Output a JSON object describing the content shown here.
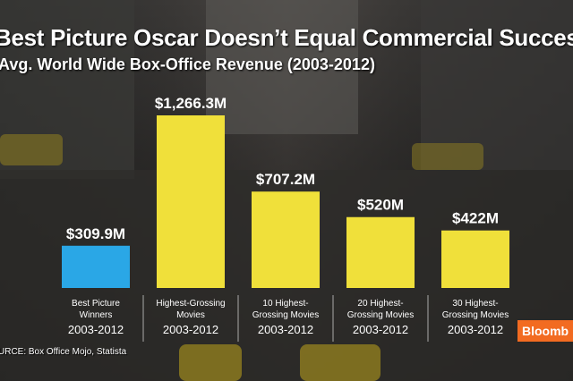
{
  "title": "Best Picture Oscar Doesn’t Equal Commercial Success",
  "subtitle": "Avg. World Wide Box-Office Revenue (2003-2012)",
  "source": "URCE:  Box Office Mojo, Statista",
  "brand": "Bloomb",
  "chart_data": {
    "type": "bar",
    "title": "Best Picture Oscar Doesn’t Equal Commercial Success",
    "subtitle": "Avg. World Wide Box-Office Revenue (2003-2012)",
    "unit": "USD millions",
    "ylim": [
      0,
      1266.3
    ],
    "grid": false,
    "legend": "none",
    "categories": [
      {
        "line1": "Best Picture",
        "line2": "Winners",
        "years": "2003-2012"
      },
      {
        "line1": "Highest-Grossing",
        "line2": "Movies",
        "years": "2003-2012"
      },
      {
        "line1": "10 Highest-",
        "line2": "Grossing Movies",
        "years": "2003-2012"
      },
      {
        "line1": "20 Highest-",
        "line2": "Grossing Movies",
        "years": "2003-2012"
      },
      {
        "line1": "30 Highest-",
        "line2": "Grossing Movies",
        "years": "2003-2012"
      }
    ],
    "values": [
      309.9,
      1266.3,
      707.2,
      520,
      422
    ],
    "labels": [
      "$309.9M",
      "$1,266.3M",
      "$707.2M",
      "$520M",
      "$422M"
    ],
    "colors": [
      "#2aa7e6",
      "#f0e03a",
      "#f0e03a",
      "#f0e03a",
      "#f0e03a"
    ]
  }
}
